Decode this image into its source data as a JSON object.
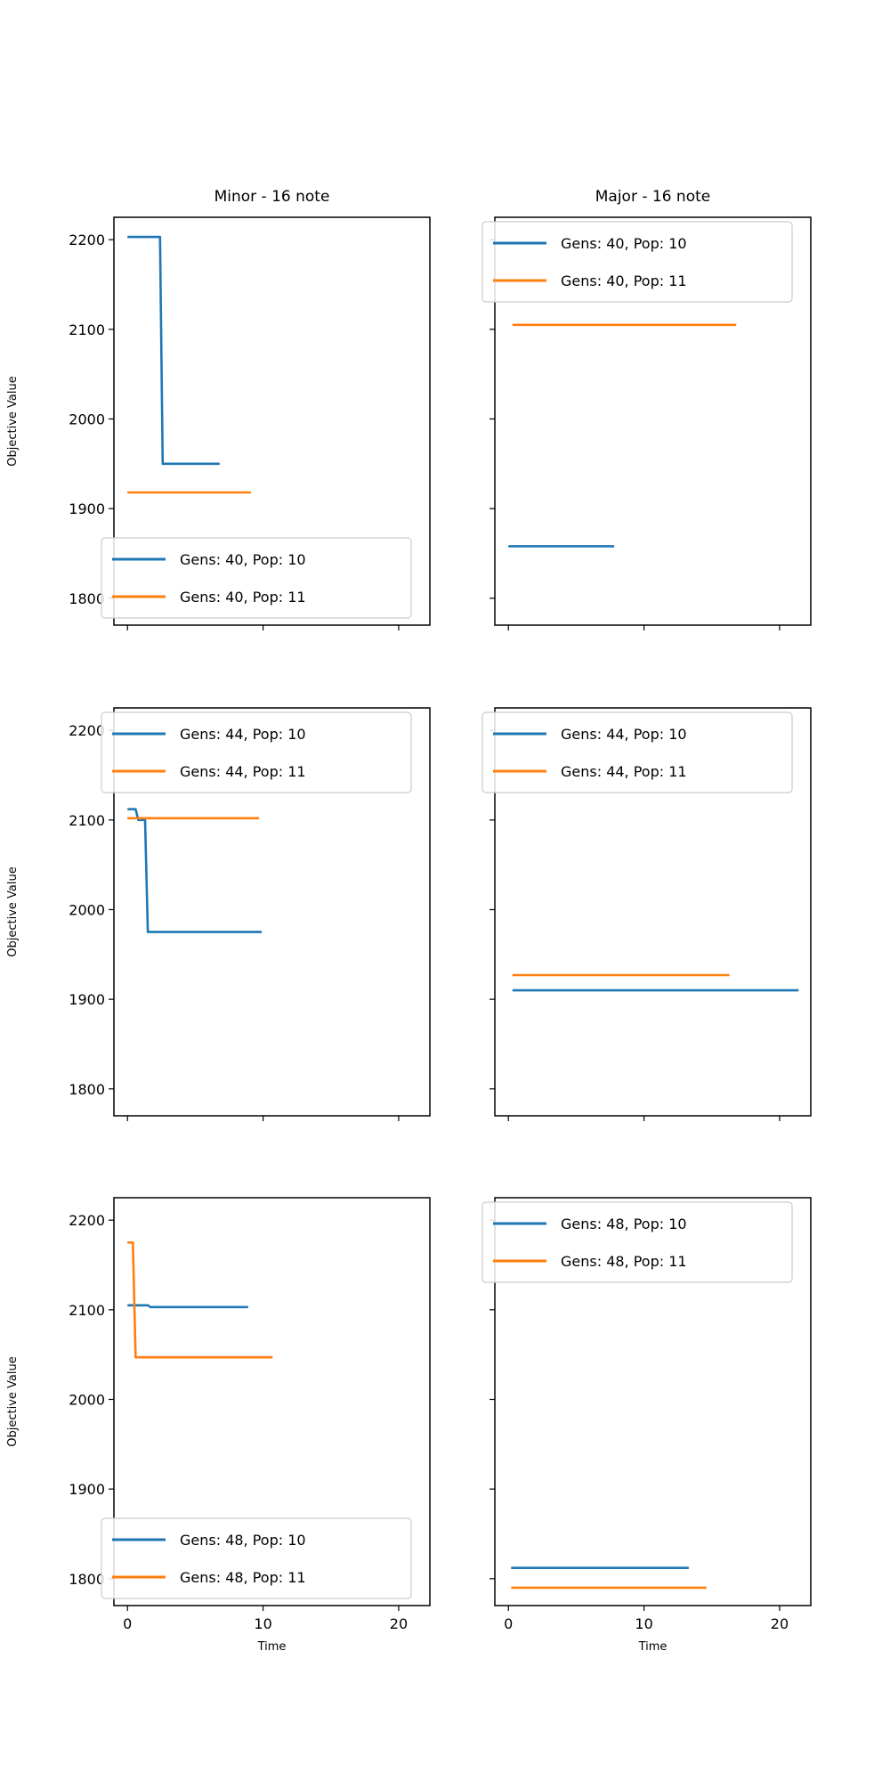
{
  "colors": {
    "series_1": "#1f77b4",
    "series_2": "#ff7f0e"
  },
  "chart_data": [
    {
      "type": "line",
      "title": "Minor - 16 note",
      "xlabel": "",
      "ylabel": "Objective Value",
      "xlim": [
        -1,
        22.3
      ],
      "ylim": [
        1770,
        2225
      ],
      "xticks": [
        0,
        10,
        20
      ],
      "yticks": [
        1800,
        1900,
        2000,
        2100,
        2200
      ],
      "show_x_tick_labels": false,
      "show_y_tick_labels": true,
      "legend_position": "lower-left",
      "series": [
        {
          "name": "Gens: 40, Pop: 10",
          "color": "#1f77b4",
          "x": [
            0.0,
            2.4,
            2.6,
            6.8
          ],
          "y": [
            2203,
            2203,
            1950,
            1950
          ]
        },
        {
          "name": "Gens: 40, Pop: 11",
          "color": "#ff7f0e",
          "x": [
            0.0,
            9.1
          ],
          "y": [
            1918,
            1918
          ]
        }
      ]
    },
    {
      "type": "line",
      "title": "Major - 16 note",
      "xlabel": "",
      "ylabel": "",
      "xlim": [
        -1,
        22.3
      ],
      "ylim": [
        1770,
        2225
      ],
      "xticks": [
        0,
        10,
        20
      ],
      "yticks": [
        1800,
        1900,
        2000,
        2100,
        2200
      ],
      "show_x_tick_labels": false,
      "show_y_tick_labels": false,
      "legend_position": "upper-left",
      "series": [
        {
          "name": "Gens: 40, Pop: 10",
          "color": "#1f77b4",
          "x": [
            0.0,
            7.8
          ],
          "y": [
            1858,
            1858
          ]
        },
        {
          "name": "Gens: 40, Pop: 11",
          "color": "#ff7f0e",
          "x": [
            0.3,
            16.8
          ],
          "y": [
            2105,
            2105
          ]
        }
      ]
    },
    {
      "type": "line",
      "title": "",
      "xlabel": "",
      "ylabel": "Objective Value",
      "xlim": [
        -1,
        22.3
      ],
      "ylim": [
        1770,
        2225
      ],
      "xticks": [
        0,
        10,
        20
      ],
      "yticks": [
        1800,
        1900,
        2000,
        2100,
        2200
      ],
      "show_x_tick_labels": false,
      "show_y_tick_labels": true,
      "legend_position": "upper-left",
      "series": [
        {
          "name": "Gens: 44, Pop: 10",
          "color": "#1f77b4",
          "x": [
            0.0,
            0.6,
            0.8,
            1.3,
            1.5,
            9.9
          ],
          "y": [
            2112,
            2112,
            2100,
            2100,
            1975,
            1975
          ]
        },
        {
          "name": "Gens: 44, Pop: 11",
          "color": "#ff7f0e",
          "x": [
            0.0,
            9.7
          ],
          "y": [
            2102,
            2102
          ]
        }
      ]
    },
    {
      "type": "line",
      "title": "",
      "xlabel": "",
      "ylabel": "",
      "xlim": [
        -1,
        22.3
      ],
      "ylim": [
        1770,
        2225
      ],
      "xticks": [
        0,
        10,
        20
      ],
      "yticks": [
        1800,
        1900,
        2000,
        2100,
        2200
      ],
      "show_x_tick_labels": false,
      "show_y_tick_labels": false,
      "legend_position": "upper-left",
      "series": [
        {
          "name": "Gens: 44, Pop: 10",
          "color": "#1f77b4",
          "x": [
            0.3,
            21.4
          ],
          "y": [
            1910,
            1910
          ]
        },
        {
          "name": "Gens: 44, Pop: 11",
          "color": "#ff7f0e",
          "x": [
            0.3,
            16.3
          ],
          "y": [
            1927,
            1927
          ]
        }
      ]
    },
    {
      "type": "line",
      "title": "",
      "xlabel": "Time",
      "ylabel": "Objective Value",
      "xlim": [
        -1,
        22.3
      ],
      "ylim": [
        1770,
        2225
      ],
      "xticks": [
        0,
        10,
        20
      ],
      "yticks": [
        1800,
        1900,
        2000,
        2100,
        2200
      ],
      "show_x_tick_labels": true,
      "show_y_tick_labels": true,
      "legend_position": "lower-left",
      "series": [
        {
          "name": "Gens: 48, Pop: 10",
          "color": "#1f77b4",
          "x": [
            0.0,
            1.5,
            1.7,
            8.9
          ],
          "y": [
            2105,
            2105,
            2103,
            2103
          ]
        },
        {
          "name": "Gens: 48, Pop: 11",
          "color": "#ff7f0e",
          "x": [
            0.0,
            0.4,
            0.6,
            10.7
          ],
          "y": [
            2175,
            2175,
            2047,
            2047
          ]
        }
      ]
    },
    {
      "type": "line",
      "title": "",
      "xlabel": "Time",
      "ylabel": "",
      "xlim": [
        -1,
        22.3
      ],
      "ylim": [
        1770,
        2225
      ],
      "xticks": [
        0,
        10,
        20
      ],
      "yticks": [
        1800,
        1900,
        2000,
        2100,
        2200
      ],
      "show_x_tick_labels": true,
      "show_y_tick_labels": false,
      "legend_position": "upper-left",
      "series": [
        {
          "name": "Gens: 48, Pop: 10",
          "color": "#1f77b4",
          "x": [
            0.2,
            13.3
          ],
          "y": [
            1812,
            1812
          ]
        },
        {
          "name": "Gens: 48, Pop: 11",
          "color": "#ff7f0e",
          "x": [
            0.2,
            14.6
          ],
          "y": [
            1790,
            1790
          ]
        }
      ]
    }
  ]
}
